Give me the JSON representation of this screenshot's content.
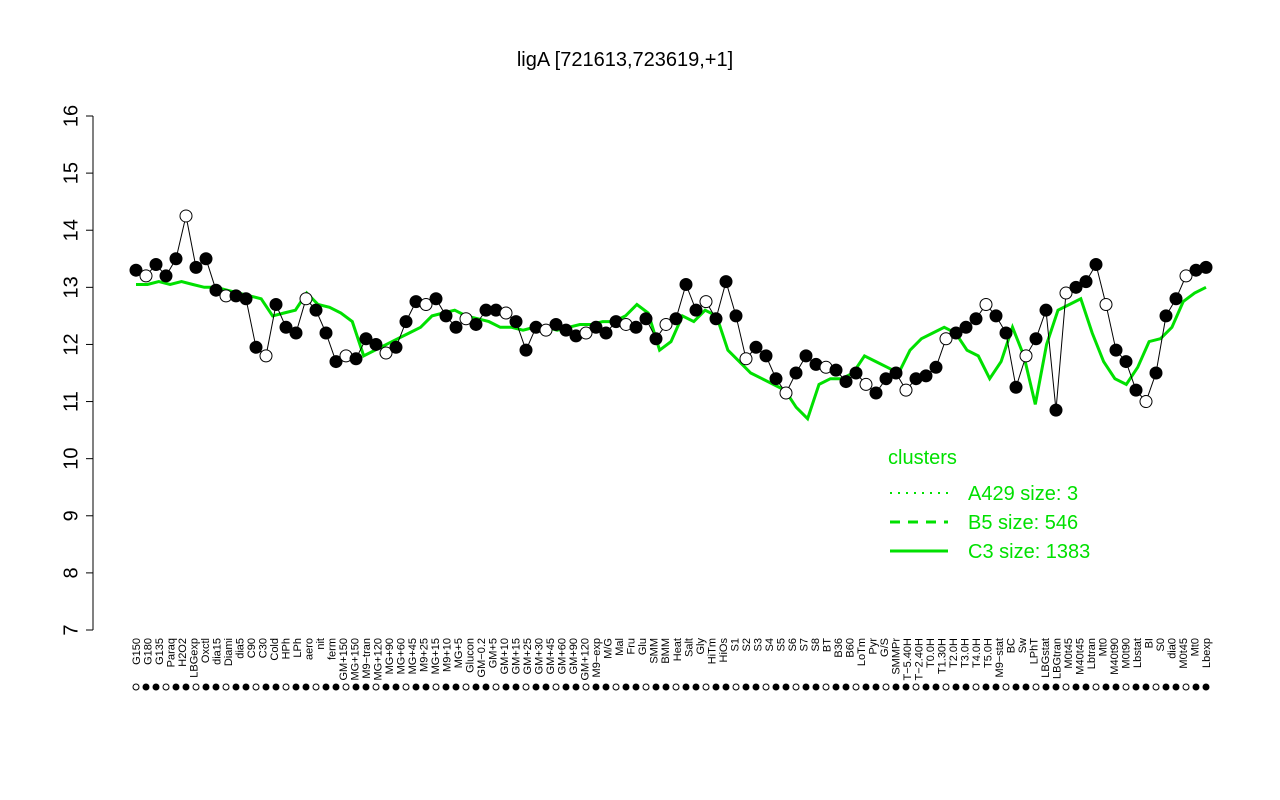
{
  "chart_data": {
    "type": "line",
    "title": "ligA [721613,723619,+1]",
    "xlabel": "",
    "ylabel": "",
    "ylim": [
      7,
      16
    ],
    "yticks": [
      "7",
      "8",
      "9",
      "10",
      "11",
      "12",
      "13",
      "14",
      "15",
      "16"
    ],
    "x_tick_labels": [
      "G150",
      "G180",
      "G135",
      "Paraq",
      "H2O2",
      "LBGexp",
      "Oxctl",
      "dia15",
      "Diami",
      "dia5",
      "C90",
      "C30",
      "Cold",
      "HPh",
      "LPh",
      "aero",
      "nit",
      "ferm",
      "GM+150",
      "MG+150",
      "M9−tran",
      "MG+120",
      "MG+90",
      "MG+60",
      "MG+45",
      "M9+25",
      "MG+15",
      "M9+10",
      "MG+5",
      "Glucon",
      "GM−0.2",
      "GM+5",
      "GM+10",
      "GM+15",
      "GM+25",
      "GM+30",
      "GM+45",
      "GM+60",
      "GM+90",
      "GM+120",
      "M9−exp",
      "M/G",
      "Mal",
      "Fru",
      "Glu",
      "SMM",
      "BMM",
      "Heat",
      "Salt",
      "Gly",
      "HiTm",
      "HiOs",
      "S1",
      "S2",
      "S3",
      "S4",
      "S5",
      "S6",
      "S7",
      "S8",
      "BT",
      "B36",
      "B60",
      "LoTm",
      "Pyr",
      "G/S",
      "SMMPr",
      "T−5.40H",
      "T−2.40H",
      "T0.0H",
      "T1.30H",
      "T2.0H",
      "T3.0H",
      "T4.0H",
      "T5.0H",
      "M9−stat",
      "BC",
      "Sw",
      "LPhT",
      "LBGstat",
      "LBGtran",
      "M0t45",
      "M40t45",
      "Lbtran",
      "Mt0",
      "M40t90",
      "M0t90",
      "Lbstat",
      "BI",
      "S0",
      "dia0",
      "M0t45",
      "Mt0",
      "Lbexp"
    ],
    "series": [
      {
        "name": "A429 size: 3",
        "style": "dotted",
        "color": "#00e000"
      },
      {
        "name": "B5 size: 546",
        "style": "dashed",
        "color": "#00e000"
      },
      {
        "name": "C3 size: 1383",
        "style": "solid",
        "color": "#00e000"
      }
    ],
    "legend_title": "clusters",
    "legend_position": "right",
    "line_values": [
      13.05,
      13.05,
      13.1,
      13.05,
      13.1,
      13.05,
      13.0,
      13.0,
      12.95,
      12.9,
      12.85,
      12.8,
      12.5,
      12.55,
      12.6,
      12.9,
      12.7,
      12.65,
      12.55,
      12.4,
      11.8,
      11.9,
      12.0,
      12.1,
      12.2,
      12.3,
      12.5,
      12.55,
      12.6,
      12.5,
      12.45,
      12.4,
      12.3,
      12.3,
      12.25,
      12.3,
      12.3,
      12.25,
      12.3,
      12.35,
      12.35,
      12.4,
      12.4,
      12.5,
      12.7,
      12.55,
      11.9,
      12.05,
      12.5,
      12.4,
      12.6,
      12.5,
      11.9,
      11.7,
      11.5,
      11.4,
      11.3,
      11.2,
      10.9,
      10.7,
      11.3,
      11.4,
      11.4,
      11.5,
      11.8,
      11.7,
      11.6,
      11.5,
      11.9,
      12.1,
      12.2,
      12.3,
      12.2,
      11.9,
      11.8,
      11.4,
      11.7,
      12.3,
      11.8,
      10.95,
      12.0,
      12.6,
      12.7,
      12.8,
      12.2,
      11.7,
      11.4,
      11.3,
      11.6,
      12.05,
      12.1,
      12.3,
      12.75,
      12.9,
      13.0
    ],
    "point_values": [
      13.3,
      13.2,
      13.4,
      13.2,
      13.5,
      14.25,
      13.35,
      13.5,
      12.95,
      12.85,
      12.85,
      12.8,
      11.95,
      11.8,
      12.7,
      12.3,
      12.2,
      12.8,
      12.6,
      12.2,
      11.7,
      11.8,
      11.75,
      12.1,
      12.0,
      11.85,
      11.95,
      12.4,
      12.75,
      12.7,
      12.8,
      12.5,
      12.3,
      12.45,
      12.35,
      12.6,
      12.6,
      12.55,
      12.4,
      11.9,
      12.3,
      12.25,
      12.35,
      12.25,
      12.15,
      12.2,
      12.3,
      12.2,
      12.4,
      12.35,
      12.3,
      12.45,
      12.1,
      12.35,
      12.45,
      13.05,
      12.6,
      12.75,
      12.45,
      13.1,
      12.5,
      11.75,
      11.95,
      11.8,
      11.4,
      11.15,
      11.5,
      11.8,
      11.65,
      11.6,
      11.55,
      11.35,
      11.5,
      11.3,
      11.15,
      11.4,
      11.5,
      11.2,
      11.4,
      11.45,
      11.6,
      12.1,
      12.2,
      12.3,
      12.45,
      12.7,
      12.5,
      12.2,
      11.25,
      11.8,
      12.1,
      12.6,
      10.85,
      12.9,
      13.0,
      13.1,
      13.4,
      12.7,
      11.9,
      11.7,
      11.2,
      11.0,
      11.5,
      12.5,
      12.8,
      13.2,
      13.3,
      13.35
    ]
  }
}
